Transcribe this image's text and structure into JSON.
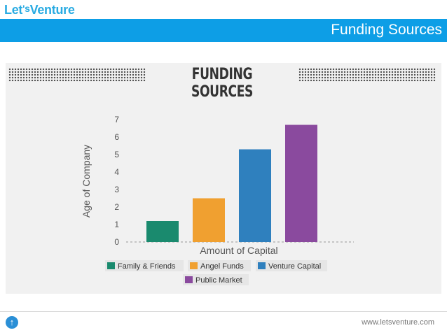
{
  "header": {
    "logo_part1": "Let",
    "logo_part2": "'s",
    "logo_part3": "Venture",
    "slide_title": "Funding Sources"
  },
  "footer": {
    "url": "www.letsventure.com"
  },
  "colors": {
    "brand_blue": "#0d9ee6"
  },
  "chart_data": {
    "type": "bar",
    "title": "FUNDING SOURCES",
    "xlabel": "Amount of Capital",
    "ylabel": "Age of Company",
    "ylim": [
      0,
      7
    ],
    "yticks": [
      "0",
      "1",
      "2",
      "3",
      "4",
      "5",
      "6",
      "7"
    ],
    "categories": [
      "Family & Friends",
      "Angel Funds",
      "Venture Capital",
      "Public Market"
    ],
    "values": [
      1.2,
      2.5,
      5.3,
      6.7
    ],
    "colors": [
      "#1a8a6e",
      "#f0a030",
      "#2f80be",
      "#8a4a9e"
    ],
    "legend_position": "bottom",
    "grid": false
  }
}
